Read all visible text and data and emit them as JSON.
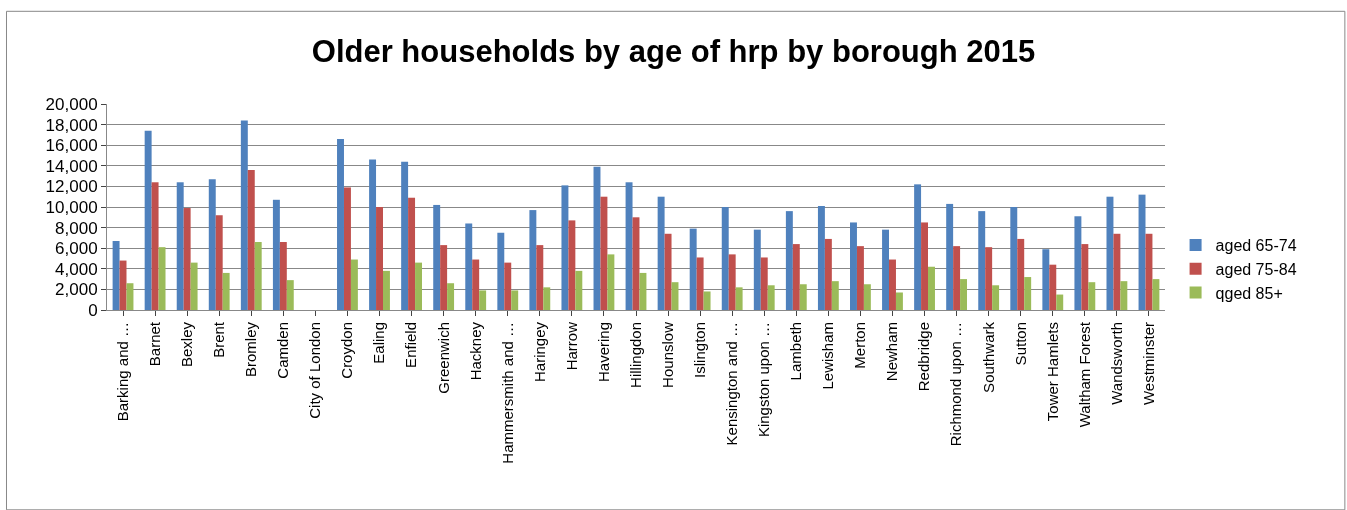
{
  "chart_data": {
    "type": "bar",
    "title": "Older households by age of hrp by borough 2015",
    "categories": [
      "Barking and …",
      "Barnet",
      "Bexley",
      "Brent",
      "Bromley",
      "Camden",
      "City of London",
      "Croydon",
      "Ealing",
      "Enfield",
      "Greenwich",
      "Hackney",
      "Hammersmith and …",
      "Haringey",
      "Harrow",
      "Havering",
      "Hillingdon",
      "Hounslow",
      "Islington",
      "Kensington and …",
      "Kingston upon …",
      "Lambeth",
      "Lewisham",
      "Merton",
      "Newham",
      "Redbridge",
      "Richmond upon …",
      "Southwark",
      "Sutton",
      "Tower Hamlets",
      "Waltham Forest",
      "Wandsworth",
      "Westminster"
    ],
    "series": [
      {
        "name": "aged 65-74",
        "color": "#4f81bd",
        "values": [
          6700,
          17400,
          12400,
          12700,
          18400,
          10700,
          null,
          16600,
          14600,
          14400,
          10200,
          8400,
          7500,
          9700,
          12100,
          13900,
          12400,
          11000,
          7900,
          10000,
          7800,
          9600,
          10100,
          8500,
          7800,
          12200,
          10300,
          9600,
          10000,
          5900,
          9100,
          11000,
          11200
        ]
      },
      {
        "name": "aged 75-84",
        "color": "#c0504d",
        "values": [
          4800,
          12400,
          9900,
          9200,
          13600,
          6600,
          null,
          11900,
          10000,
          10900,
          6300,
          4900,
          4600,
          6300,
          8700,
          11000,
          9000,
          7400,
          5100,
          5400,
          5100,
          6400,
          6900,
          6200,
          4900,
          8500,
          6200,
          6100,
          6900,
          4400,
          6400,
          7400,
          7400
        ]
      },
      {
        "name": "qged 85+",
        "color": "#9bbb59",
        "values": [
          2600,
          6100,
          4600,
          3600,
          6600,
          2900,
          null,
          4900,
          3800,
          4600,
          2600,
          1900,
          1900,
          2200,
          3800,
          5400,
          3600,
          2700,
          1800,
          2200,
          2400,
          2500,
          2800,
          2500,
          1700,
          4200,
          3000,
          2400,
          3200,
          1500,
          2700,
          2800,
          3000
        ]
      }
    ],
    "ylim": [
      0,
      20000
    ],
    "yticks": [
      {
        "value": 0,
        "label": "0"
      },
      {
        "value": 2000,
        "label": "2,000"
      },
      {
        "value": 4000,
        "label": "4,000"
      },
      {
        "value": 6000,
        "label": "6,000"
      },
      {
        "value": 8000,
        "label": "8,000"
      },
      {
        "value": 10000,
        "label": "10,000"
      },
      {
        "value": 12000,
        "label": "12,000"
      },
      {
        "value": 14000,
        "label": "14,000"
      },
      {
        "value": 16000,
        "label": "16,000"
      },
      {
        "value": 18000,
        "label": "18,000"
      },
      {
        "value": 20000,
        "label": "20,000"
      }
    ],
    "grid": "y",
    "legend": "right"
  }
}
